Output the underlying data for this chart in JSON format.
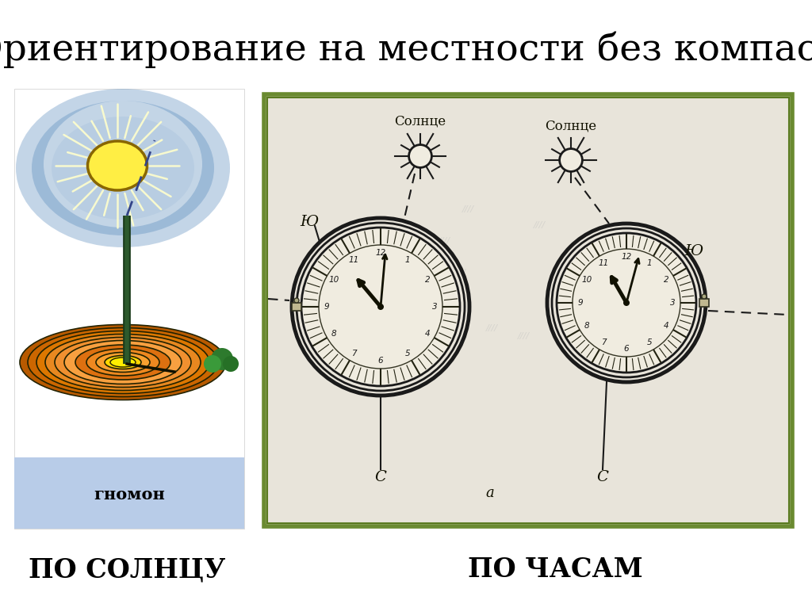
{
  "title": "Ориентирование на местности без компаса",
  "title_fontsize": 34,
  "label_left": "ПО СОЛНЦУ",
  "label_right": "ПО ЧАСАМ",
  "label_fontsize": 24,
  "gnomon_label": "гномон",
  "gnomon_label_fontsize": 15,
  "bg_color": "#ffffff",
  "panel_bg": "#e8e4dc",
  "panel_border": "#7a9a3a",
  "sun_label": "Солнце",
  "south_label": "Ю",
  "north_label": "С",
  "fig_label": "a"
}
